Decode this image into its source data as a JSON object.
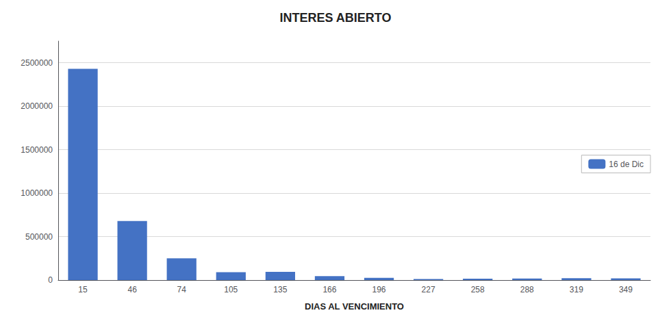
{
  "chart_data": {
    "type": "bar",
    "title": "INTERES ABIERTO",
    "xlabel": "DIAS AL VENCIMIENTO",
    "categories": [
      "15",
      "46",
      "74",
      "105",
      "135",
      "166",
      "196",
      "227",
      "258",
      "288",
      "319",
      "349"
    ],
    "series": [
      {
        "name": "16 de Dic",
        "color": "#4472C4",
        "values": [
          2430000,
          680000,
          250000,
          90000,
          95000,
          45000,
          25000,
          12000,
          15000,
          18000,
          22000,
          20000
        ]
      }
    ],
    "ylim": [
      0,
      2750000
    ],
    "yticks": [
      0,
      500000,
      1000000,
      1500000,
      2000000,
      2500000
    ],
    "grid": true,
    "legend": "right"
  }
}
